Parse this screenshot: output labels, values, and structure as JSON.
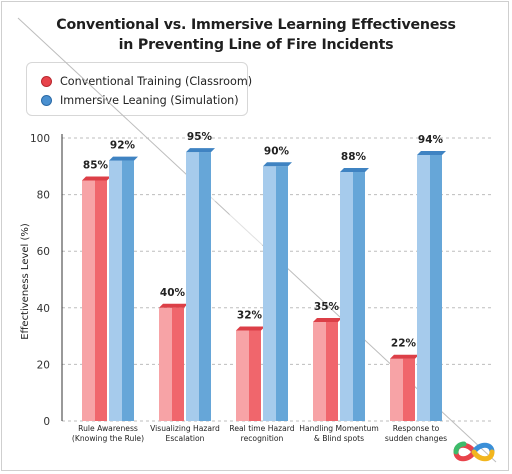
{
  "title": {
    "line1": "Conventional vs. Immersive Learning Effectiveness",
    "line2": "in Preventing Line of Fire Incidents"
  },
  "colors": {
    "conventional": "#f0666c",
    "immersive": "#66a6d8",
    "grid": "#bdbdbd",
    "text": "#222222"
  },
  "chart_data": {
    "type": "bar",
    "title": "Conventional vs. Immersive Learning Effectiveness in Preventing Line of Fire Incidents",
    "xlabel": "",
    "ylabel": "Effectiveness Level (%)",
    "ylim": [
      0,
      100
    ],
    "yticks": [
      0,
      20,
      40,
      60,
      80,
      100
    ],
    "grid": true,
    "legend_position": "top-left",
    "categories": [
      [
        "Rule Awareness",
        "(Knowing the Rule)"
      ],
      [
        "Visualizing Hazard",
        "Escalation"
      ],
      [
        "Real time Hazard",
        "recognition"
      ],
      [
        "Handling Momentum",
        "& Blind spots"
      ],
      [
        "Response to",
        "sudden changes"
      ]
    ],
    "series": [
      {
        "name": "Conventional Training (Classroom)",
        "color": "#f0666c",
        "values": [
          85,
          40,
          32,
          35,
          22
        ],
        "labels": [
          "85%",
          "40%",
          "32%",
          "35%",
          "22%"
        ]
      },
      {
        "name": "Immersive Leaning (Simulation)",
        "color": "#66a6d8",
        "values": [
          92,
          95,
          90,
          88,
          94
        ],
        "labels": [
          "92%",
          "95%",
          "90%",
          "88%",
          "94%"
        ]
      }
    ]
  }
}
